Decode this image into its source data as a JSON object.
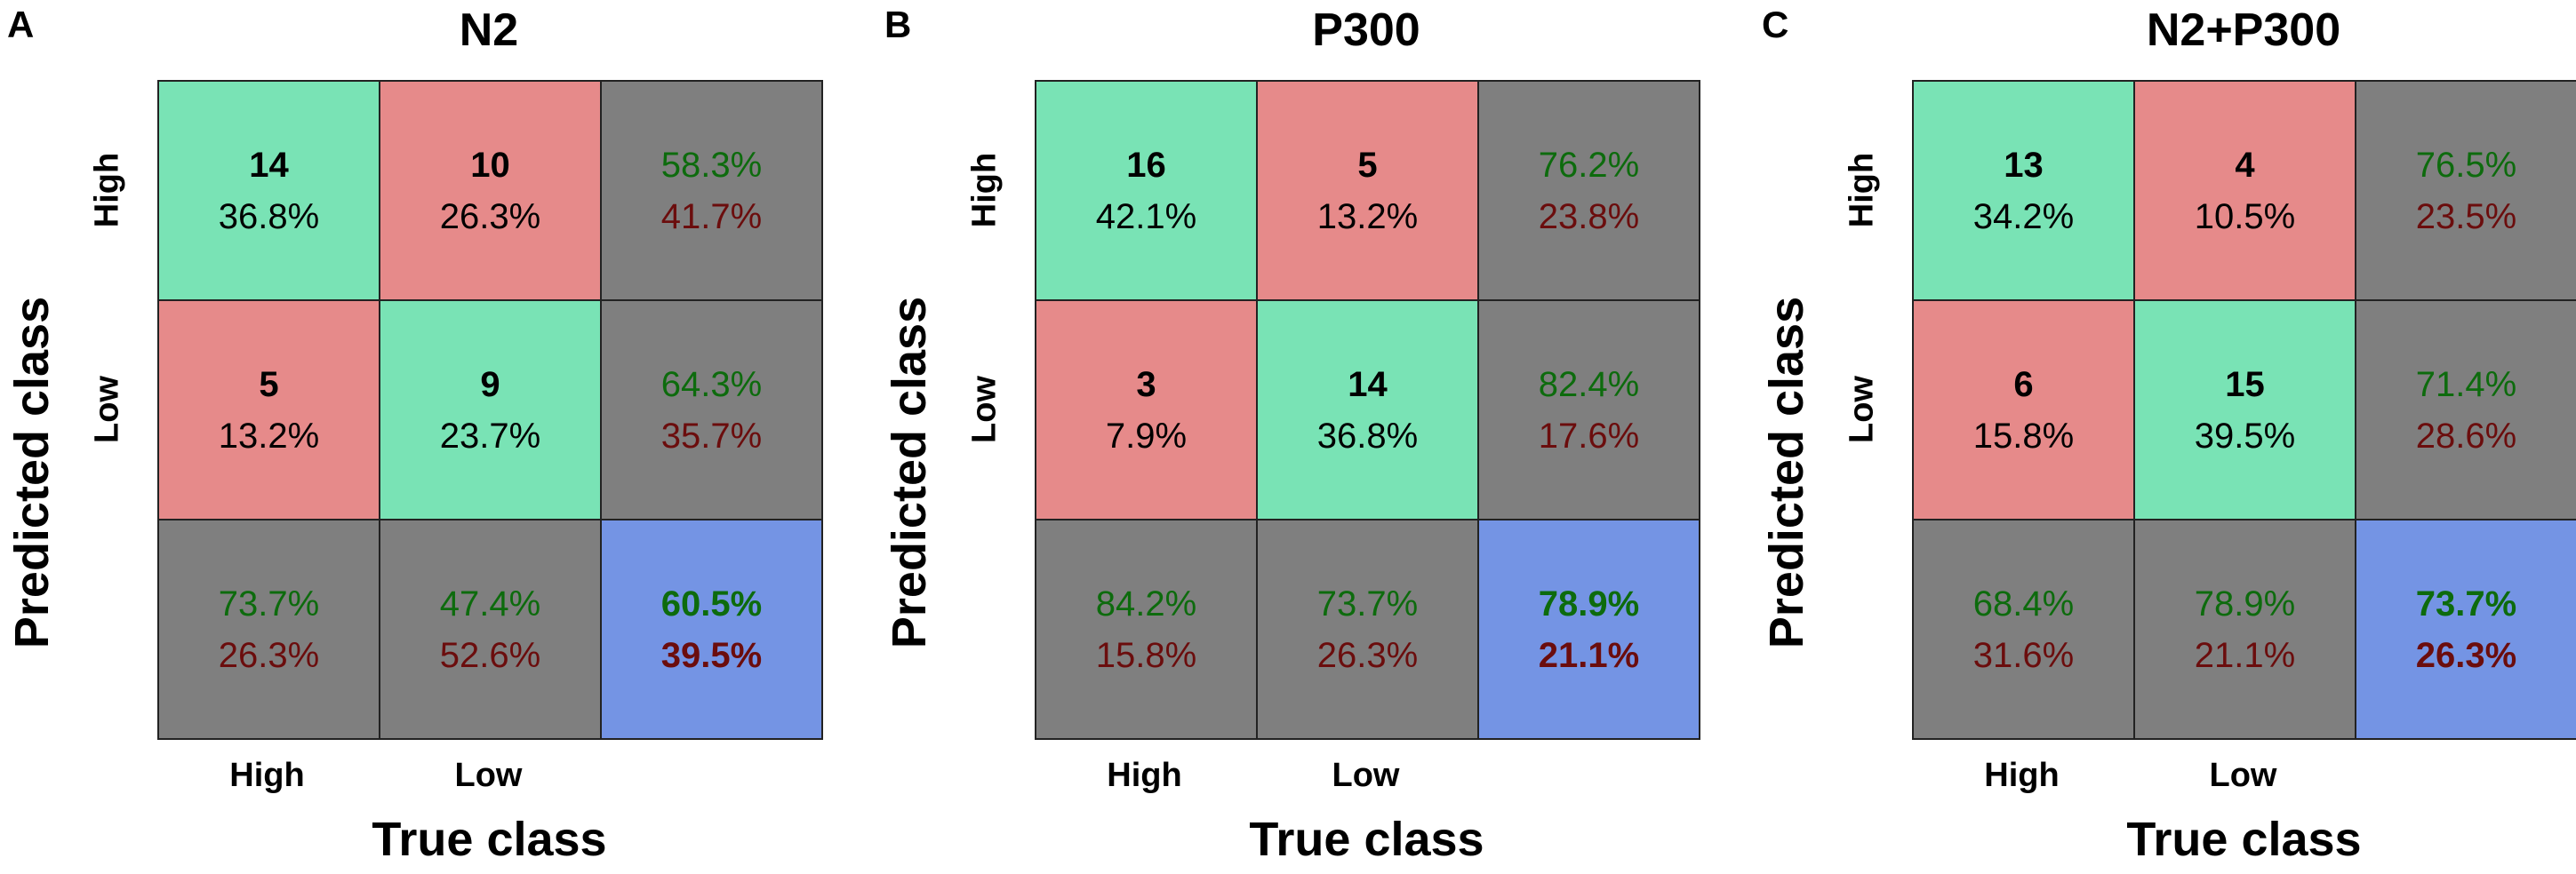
{
  "chart_data": [
    {
      "type": "heatmap",
      "panel": "A",
      "title": "N2",
      "xlabel": "True class",
      "ylabel": "Predicted class",
      "x_ticks": [
        "High",
        "Low"
      ],
      "y_ticks": [
        "High",
        "Low"
      ],
      "cells": [
        [
          {
            "count": "14",
            "pct": "36.8%"
          },
          {
            "count": "10",
            "pct": "26.3%"
          }
        ],
        [
          {
            "count": "5",
            "pct": "13.2%"
          },
          {
            "count": "9",
            "pct": "23.7%"
          }
        ]
      ],
      "row_summary": [
        {
          "correct": "58.3%",
          "error": "41.7%"
        },
        {
          "correct": "64.3%",
          "error": "35.7%"
        }
      ],
      "col_summary": [
        {
          "correct": "73.7%",
          "error": "26.3%"
        },
        {
          "correct": "47.4%",
          "error": "52.6%"
        }
      ],
      "overall": {
        "correct": "60.5%",
        "error": "39.5%"
      }
    },
    {
      "type": "heatmap",
      "panel": "B",
      "title": "P300",
      "xlabel": "True class",
      "ylabel": "Predicted class",
      "x_ticks": [
        "High",
        "Low"
      ],
      "y_ticks": [
        "High",
        "Low"
      ],
      "cells": [
        [
          {
            "count": "16",
            "pct": "42.1%"
          },
          {
            "count": "5",
            "pct": "13.2%"
          }
        ],
        [
          {
            "count": "3",
            "pct": "7.9%"
          },
          {
            "count": "14",
            "pct": "36.8%"
          }
        ]
      ],
      "row_summary": [
        {
          "correct": "76.2%",
          "error": "23.8%"
        },
        {
          "correct": "82.4%",
          "error": "17.6%"
        }
      ],
      "col_summary": [
        {
          "correct": "84.2%",
          "error": "15.8%"
        },
        {
          "correct": "73.7%",
          "error": "26.3%"
        }
      ],
      "overall": {
        "correct": "78.9%",
        "error": "21.1%"
      }
    },
    {
      "type": "heatmap",
      "panel": "C",
      "title": "N2+P300",
      "xlabel": "True class",
      "ylabel": "Predicted class",
      "x_ticks": [
        "High",
        "Low"
      ],
      "y_ticks": [
        "High",
        "Low"
      ],
      "cells": [
        [
          {
            "count": "13",
            "pct": "34.2%"
          },
          {
            "count": "4",
            "pct": "10.5%"
          }
        ],
        [
          {
            "count": "6",
            "pct": "15.8%"
          },
          {
            "count": "15",
            "pct": "39.5%"
          }
        ]
      ],
      "row_summary": [
        {
          "correct": "76.5%",
          "error": "23.5%"
        },
        {
          "correct": "71.4%",
          "error": "28.6%"
        }
      ],
      "col_summary": [
        {
          "correct": "68.4%",
          "error": "31.6%"
        },
        {
          "correct": "78.9%",
          "error": "21.1%"
        }
      ],
      "overall": {
        "correct": "73.7%",
        "error": "26.3%"
      }
    }
  ],
  "colors": {
    "correct_cell": "#79e3b5",
    "error_cell": "#e68a8a",
    "summary_cell": "#7f7f7f",
    "overall_cell": "#7494e4",
    "correct_text": "#0d6b0d",
    "error_text": "#6b0d0d"
  }
}
